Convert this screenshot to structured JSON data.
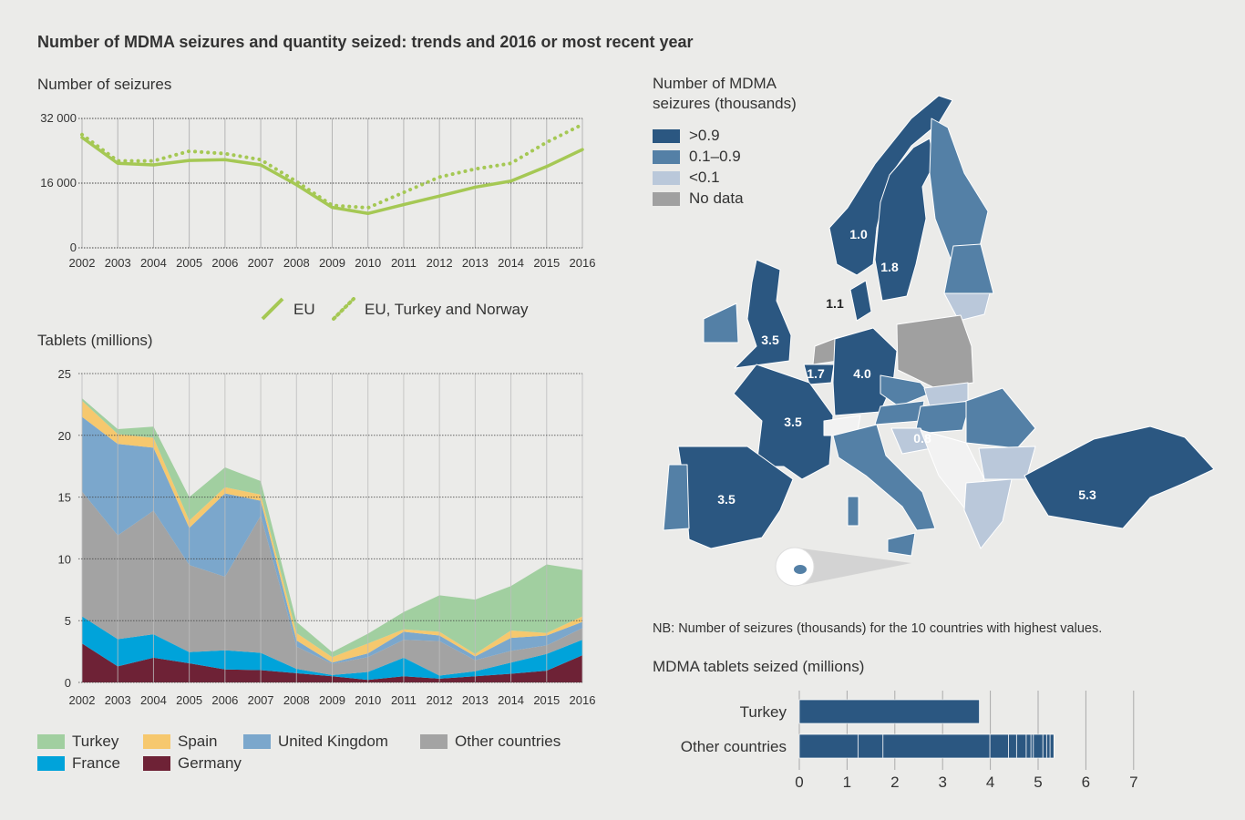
{
  "title": "Number of MDMA seizures and quantity seized: trends and 2016 or most recent year",
  "colors": {
    "background": "#ebebe9",
    "eu_line": "#a5c854",
    "turkey": "#a1cfa0",
    "spain": "#f6c86e",
    "united_kingdom": "#7ba7cc",
    "other_countries": "#a3a3a3",
    "france": "#00a3da",
    "germany": "#6e2236",
    "map_high": "#2b5781",
    "map_mid": "#5480a6",
    "map_low": "#bac8da",
    "map_nodata": "#a0a0a0",
    "bar": "#2b5781"
  },
  "chart_data": [
    {
      "type": "line",
      "title": "Number of seizures",
      "x": [
        2002,
        2003,
        2004,
        2005,
        2006,
        2007,
        2008,
        2009,
        2010,
        2011,
        2012,
        2013,
        2014,
        2015,
        2016
      ],
      "ylim": [
        0,
        32000
      ],
      "yticks": [
        "0",
        "16 000",
        "32 000"
      ],
      "ytick_values": [
        0,
        16000,
        32000
      ],
      "grid": true,
      "legend_position": "bottom",
      "series": [
        {
          "name": "EU",
          "style": "solid",
          "values": [
            27300,
            20900,
            20500,
            21600,
            21800,
            20500,
            15600,
            10000,
            8500,
            10700,
            12800,
            15000,
            16500,
            20100,
            24300
          ]
        },
        {
          "name": "EU, Turkey and Norway",
          "style": "dotted",
          "values": [
            28000,
            21500,
            21500,
            23900,
            23300,
            21800,
            16400,
            10500,
            9900,
            13700,
            17500,
            19500,
            20900,
            26100,
            30500
          ]
        }
      ]
    },
    {
      "type": "area",
      "stacked": true,
      "title": "Tablets (millions)",
      "x": [
        2002,
        2003,
        2004,
        2005,
        2006,
        2007,
        2008,
        2009,
        2010,
        2011,
        2012,
        2013,
        2014,
        2015,
        2016
      ],
      "ylim": [
        0,
        25
      ],
      "yticks": [
        "0",
        "5",
        "10",
        "15",
        "20",
        "25"
      ],
      "ytick_values": [
        0,
        5,
        10,
        15,
        20,
        25
      ],
      "grid": true,
      "legend_position": "bottom",
      "series": [
        {
          "name": "Germany",
          "color_key": "germany",
          "values": [
            3.15,
            1.3,
            2.0,
            1.55,
            1.05,
            1.0,
            0.75,
            0.5,
            0.2,
            0.5,
            0.3,
            0.5,
            0.7,
            0.95,
            2.2
          ]
        },
        {
          "name": "France",
          "color_key": "france",
          "values": [
            2.2,
            2.2,
            1.9,
            0.9,
            1.55,
            1.4,
            0.35,
            0.1,
            0.65,
            1.5,
            0.25,
            0.4,
            0.9,
            1.35,
            1.25
          ]
        },
        {
          "name": "Other countries",
          "color_key": "other_countries",
          "values": [
            10.1,
            8.4,
            10.0,
            7.05,
            5.95,
            11.1,
            1.8,
            0.9,
            1.2,
            1.45,
            2.8,
            0.9,
            0.95,
            0.7,
            0.95
          ]
        },
        {
          "name": "United Kingdom",
          "color_key": "united_kingdom",
          "values": [
            6.05,
            7.4,
            5.1,
            3.0,
            6.75,
            1.2,
            0.5,
            0.1,
            0.3,
            0.65,
            0.45,
            0.3,
            1.05,
            0.8,
            0.5
          ]
        },
        {
          "name": "Spain",
          "color_key": "spain",
          "values": [
            1.3,
            0.8,
            0.8,
            0.6,
            0.5,
            0.5,
            0.6,
            0.45,
            0.8,
            0.2,
            0.3,
            0.2,
            0.6,
            0.2,
            0.45
          ]
        },
        {
          "name": "Turkey",
          "color_key": "turkey",
          "values": [
            0.2,
            0.4,
            0.9,
            1.9,
            1.6,
            1.1,
            0.9,
            0.4,
            0.8,
            1.4,
            2.95,
            4.4,
            3.6,
            5.55,
            3.75
          ]
        }
      ],
      "legend_order": [
        "Turkey",
        "Spain",
        "United Kingdom",
        "Other countries",
        "France",
        "Germany"
      ]
    },
    {
      "type": "bar",
      "orientation": "horizontal",
      "title": "MDMA tablets seized (millions)",
      "categories": [
        "Turkey",
        "Other countries"
      ],
      "values": [
        3.77,
        5.33
      ],
      "other_countries_segments": [
        1.23,
        0.52,
        2.24,
        0.39,
        0.17,
        0.2,
        0.1,
        0.05,
        0.2,
        0.08,
        0.07,
        0.08
      ],
      "xlim": [
        0,
        7
      ],
      "xticks": [
        "0",
        "1",
        "2",
        "3",
        "4",
        "5",
        "6",
        "7"
      ],
      "grid": true
    }
  ],
  "map": {
    "title_line1": "Number of MDMA",
    "title_line2": "seizures (thousands)",
    "legend": [
      {
        "label": ">0.9",
        "color_key": "map_high"
      },
      {
        "label": "0.1–0.9",
        "color_key": "map_mid"
      },
      {
        "label": "<0.1",
        "color_key": "map_low"
      },
      {
        "label": "No data",
        "color_key": "map_nodata"
      }
    ],
    "labels": [
      {
        "country": "Norway",
        "value": "1.0"
      },
      {
        "country": "Sweden",
        "value": "1.8"
      },
      {
        "country": "Denmark",
        "value": "1.1"
      },
      {
        "country": "United Kingdom",
        "value": "3.5"
      },
      {
        "country": "Belgium",
        "value": "1.7"
      },
      {
        "country": "Germany",
        "value": "4.0"
      },
      {
        "country": "France",
        "value": "3.5"
      },
      {
        "country": "Spain",
        "value": "3.5"
      },
      {
        "country": "Croatia",
        "value": "0.8"
      },
      {
        "country": "Turkey",
        "value": "5.3"
      }
    ],
    "note": "NB: Number of seizures (thousands) for the 10 countries with highest values."
  }
}
